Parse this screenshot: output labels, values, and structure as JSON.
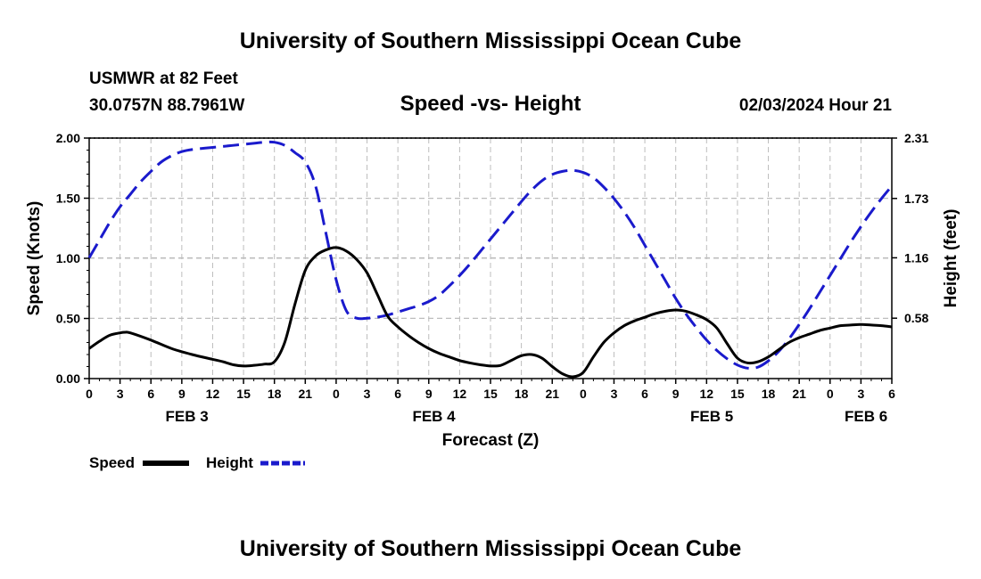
{
  "header": {
    "title": "University of Southern Mississippi Ocean Cube",
    "station": "USMWR at 82 Feet",
    "coords": "30.0757N  88.7961W",
    "date_hour": "02/03/2024 Hour 21"
  },
  "footer": {
    "title": "University of Southern Mississippi Ocean Cube"
  },
  "chart_data": {
    "type": "line",
    "title": "Speed -vs- Height",
    "xlabel": "Forecast (Z)",
    "ylabel": "Speed (Knots)",
    "ylabel_right": "Height (feet)",
    "x_unit": "hours since FEB 3 00Z",
    "xlim": [
      0,
      78
    ],
    "ylim": [
      0,
      2
    ],
    "ylim_right": [
      0,
      2.31
    ],
    "grid": true,
    "x_ticks": [
      {
        "x": 0,
        "label": "0"
      },
      {
        "x": 3,
        "label": "3"
      },
      {
        "x": 6,
        "label": "6"
      },
      {
        "x": 9,
        "label": "9"
      },
      {
        "x": 12,
        "label": "12"
      },
      {
        "x": 15,
        "label": "15"
      },
      {
        "x": 18,
        "label": "18"
      },
      {
        "x": 21,
        "label": "21"
      },
      {
        "x": 24,
        "label": "0"
      },
      {
        "x": 27,
        "label": "3"
      },
      {
        "x": 30,
        "label": "6"
      },
      {
        "x": 33,
        "label": "9"
      },
      {
        "x": 36,
        "label": "12"
      },
      {
        "x": 39,
        "label": "15"
      },
      {
        "x": 42,
        "label": "18"
      },
      {
        "x": 45,
        "label": "21"
      },
      {
        "x": 48,
        "label": "0"
      },
      {
        "x": 51,
        "label": "3"
      },
      {
        "x": 54,
        "label": "6"
      },
      {
        "x": 57,
        "label": "9"
      },
      {
        "x": 60,
        "label": "12"
      },
      {
        "x": 63,
        "label": "15"
      },
      {
        "x": 66,
        "label": "18"
      },
      {
        "x": 69,
        "label": "21"
      },
      {
        "x": 72,
        "label": "0"
      },
      {
        "x": 75,
        "label": "3"
      },
      {
        "x": 78,
        "label": "6"
      }
    ],
    "date_labels": [
      {
        "x": 9.5,
        "label": "FEB 3"
      },
      {
        "x": 33.5,
        "label": "FEB 4"
      },
      {
        "x": 60.5,
        "label": "FEB 5"
      },
      {
        "x": 75.5,
        "label": "FEB 6"
      }
    ],
    "y_ticks_left": [
      "0.00",
      "0.50",
      "1.00",
      "1.50",
      "2.00"
    ],
    "y_ticks_right": [
      "0.58",
      "1.16",
      "1.73",
      "2.31"
    ],
    "legend": [
      {
        "name": "Speed",
        "color": "#000000",
        "style": "solid"
      },
      {
        "name": "Height",
        "color": "#1a1acc",
        "style": "dashed"
      }
    ],
    "legend_position": "bottom-left",
    "series": [
      {
        "name": "Speed",
        "axis": "left",
        "color": "#000000",
        "style": "solid",
        "x": [
          0,
          1,
          2,
          3,
          3.5,
          4,
          6,
          8,
          10,
          12,
          13,
          14,
          15,
          16,
          17,
          18,
          19,
          20,
          21,
          22,
          23,
          24,
          25,
          26,
          27,
          28,
          29,
          30,
          31,
          32,
          33,
          34,
          35,
          36,
          37,
          38,
          39,
          40,
          41,
          42,
          43,
          44,
          45,
          46,
          47,
          48,
          49,
          50,
          51,
          52,
          53,
          54,
          55,
          56,
          57,
          58,
          59,
          60,
          61,
          62,
          63,
          64,
          65,
          66,
          67,
          68,
          69,
          70,
          71,
          72,
          73,
          74,
          75,
          76,
          77,
          78
        ],
        "values": [
          0.25,
          0.31,
          0.36,
          0.38,
          0.385,
          0.38,
          0.32,
          0.25,
          0.2,
          0.16,
          0.14,
          0.115,
          0.105,
          0.11,
          0.12,
          0.14,
          0.3,
          0.62,
          0.9,
          1.02,
          1.07,
          1.09,
          1.06,
          0.99,
          0.88,
          0.7,
          0.52,
          0.43,
          0.36,
          0.3,
          0.25,
          0.21,
          0.18,
          0.15,
          0.13,
          0.115,
          0.105,
          0.11,
          0.15,
          0.19,
          0.2,
          0.17,
          0.1,
          0.04,
          0.015,
          0.05,
          0.18,
          0.3,
          0.38,
          0.44,
          0.48,
          0.51,
          0.54,
          0.56,
          0.57,
          0.56,
          0.53,
          0.49,
          0.42,
          0.29,
          0.17,
          0.13,
          0.14,
          0.18,
          0.24,
          0.3,
          0.34,
          0.37,
          0.4,
          0.42,
          0.44,
          0.445,
          0.45,
          0.445,
          0.44,
          0.43
        ]
      },
      {
        "name": "Height",
        "axis": "right",
        "color": "#1a1acc",
        "style": "dashed",
        "x": [
          0,
          1,
          2,
          3,
          4,
          5,
          6,
          7,
          8,
          9,
          10,
          12,
          14,
          16,
          17,
          18,
          19,
          20,
          21,
          22,
          23,
          24,
          25,
          26,
          27,
          28,
          29,
          30,
          31,
          32,
          33,
          34,
          35,
          36,
          37,
          38,
          39,
          40,
          41,
          42,
          43,
          44,
          45,
          46,
          47,
          48,
          49,
          50,
          51,
          52,
          53,
          54,
          55,
          56,
          57,
          58,
          59,
          60,
          61,
          62,
          63,
          64,
          65,
          66,
          67,
          68,
          69,
          70,
          71,
          72,
          73,
          74,
          75,
          76,
          77,
          78
        ],
        "values": [
          1.16,
          1.33,
          1.5,
          1.65,
          1.77,
          1.89,
          1.99,
          2.08,
          2.14,
          2.18,
          2.2,
          2.22,
          2.24,
          2.26,
          2.27,
          2.27,
          2.24,
          2.17,
          2.08,
          1.85,
          1.4,
          0.95,
          0.65,
          0.58,
          0.58,
          0.59,
          0.61,
          0.64,
          0.67,
          0.7,
          0.74,
          0.8,
          0.89,
          0.99,
          1.1,
          1.22,
          1.34,
          1.46,
          1.58,
          1.7,
          1.81,
          1.9,
          1.96,
          1.99,
          2.0,
          1.98,
          1.93,
          1.84,
          1.73,
          1.6,
          1.45,
          1.28,
          1.11,
          0.94,
          0.77,
          0.62,
          0.49,
          0.37,
          0.27,
          0.19,
          0.13,
          0.1,
          0.11,
          0.17,
          0.26,
          0.38,
          0.52,
          0.67,
          0.83,
          0.99,
          1.15,
          1.31,
          1.46,
          1.6,
          1.73,
          1.85
        ]
      }
    ]
  }
}
